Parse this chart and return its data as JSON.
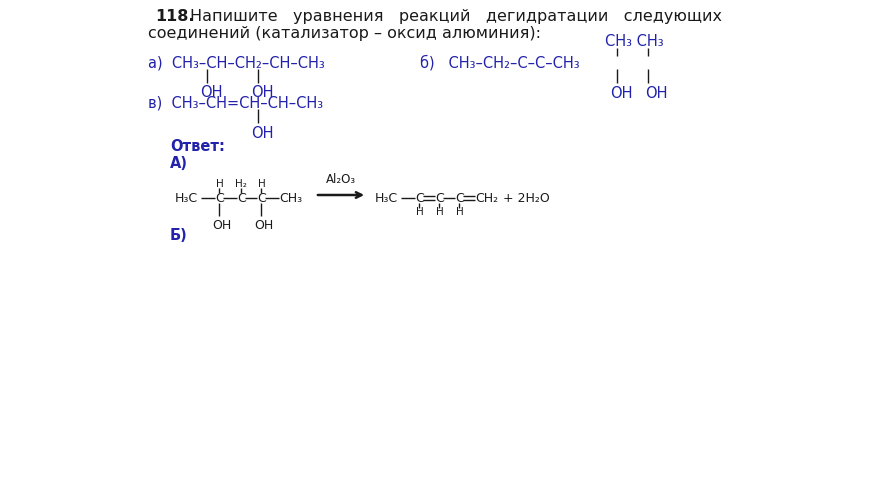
{
  "title_number": "118.",
  "title_text": "Напишите   уравнения   реакций   дегидратации   следующих",
  "subtitle_text": "соединений (катализатор – оксид алюминия):",
  "answer_label": "Ответ:",
  "answer_A": "A)",
  "answer_B": "Б)",
  "bg_color": "#ffffff",
  "blue": "#2222aa",
  "black": "#1a1a1a",
  "font_size_title": 11.5,
  "font_size_body": 10.5,
  "font_size_small": 9.0,
  "font_size_tiny": 7.5
}
